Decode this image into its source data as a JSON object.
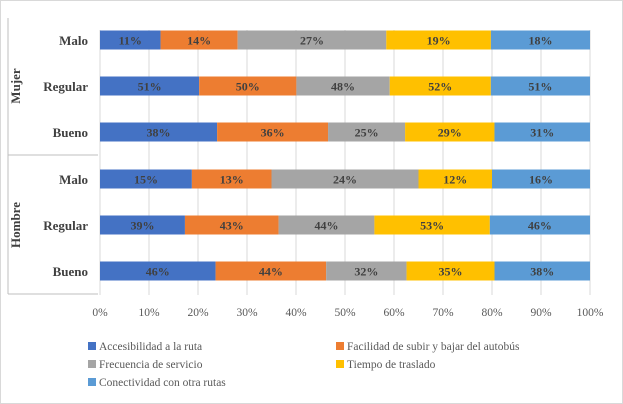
{
  "chart_data": {
    "type": "bar",
    "orientation": "horizontal",
    "stacked": true,
    "xlim": [
      0,
      100
    ],
    "xticks": [
      "0%",
      "10%",
      "20%",
      "30%",
      "40%",
      "50%",
      "60%",
      "70%",
      "80%",
      "90%",
      "100%"
    ],
    "grid": true,
    "legend_position": "bottom",
    "groups": [
      {
        "name": "Mujer",
        "rows": [
          {
            "category": "Malo",
            "values": [
              11,
              14,
              27,
              19,
              18
            ]
          },
          {
            "category": "Regular",
            "values": [
              51,
              50,
              48,
              52,
              51
            ]
          },
          {
            "category": "Bueno",
            "values": [
              38,
              36,
              25,
              29,
              31
            ]
          }
        ]
      },
      {
        "name": "Hombre",
        "rows": [
          {
            "category": "Malo",
            "values": [
              15,
              13,
              24,
              12,
              16
            ]
          },
          {
            "category": "Regular",
            "values": [
              39,
              43,
              44,
              53,
              46
            ]
          },
          {
            "category": "Bueno",
            "values": [
              46,
              44,
              32,
              35,
              38
            ]
          }
        ]
      }
    ],
    "series": [
      {
        "name": "Accesibilidad a la ruta",
        "color": "#4472c4"
      },
      {
        "name": "Facilidad de subir y bajar del autobús",
        "color": "#ed7d31"
      },
      {
        "name": "Frecuencia de servicio",
        "color": "#a5a5a5"
      },
      {
        "name": "Tiempo de traslado",
        "color": "#ffc000"
      },
      {
        "name": "Conectividad con otra rutas",
        "color": "#5b9bd5"
      }
    ]
  }
}
